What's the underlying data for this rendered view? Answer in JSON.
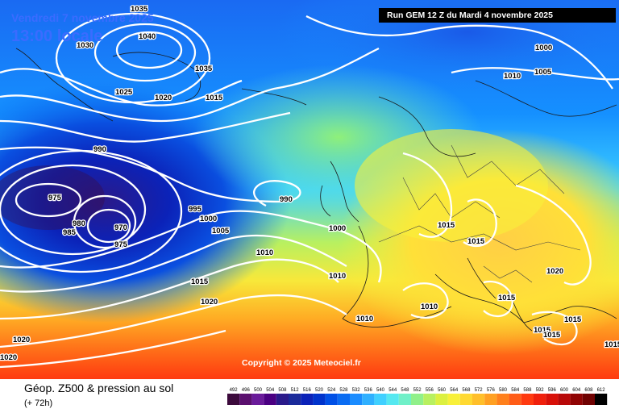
{
  "header": {
    "valid_date": "Vendredi 7 novembre 2025",
    "valid_time": "13:00 locale",
    "run_info": "Run GEM 12 Z du Mardi 4 novembre 2025"
  },
  "copyright": "Copyright © 2025 Meteociel.fr",
  "footer": {
    "title": "Géop. Z500 & pression au sol",
    "lead_time": "(+ 72h)"
  },
  "legend": {
    "values": [
      "492",
      "496",
      "500",
      "504",
      "508",
      "512",
      "516",
      "520",
      "524",
      "528",
      "532",
      "536",
      "540",
      "544",
      "548",
      "552",
      "556",
      "560",
      "564",
      "568",
      "572",
      "576",
      "580",
      "584",
      "588",
      "592",
      "596",
      "600",
      "604",
      "608",
      "612"
    ],
    "colors": [
      "#3b0a3b",
      "#5a0f6e",
      "#6a1b9a",
      "#4b0082",
      "#2a1a8a",
      "#1a2a9a",
      "#0b22b8",
      "#0033cc",
      "#0050e6",
      "#0a6cf2",
      "#1a8cff",
      "#2fb0ff",
      "#40d0ff",
      "#55e8f0",
      "#70f0c8",
      "#90f08a",
      "#b8f060",
      "#dcf040",
      "#f8f03a",
      "#ffd932",
      "#ffbf2a",
      "#ffa022",
      "#ff801c",
      "#ff5c16",
      "#ff3a10",
      "#f0200c",
      "#d81008",
      "#b80808",
      "#900404",
      "#700202",
      "#000000"
    ]
  },
  "pressure_labels": [
    "1035",
    "1040",
    "1030",
    "1035",
    "1025",
    "1020",
    "1015",
    "990",
    "975",
    "980",
    "985",
    "970",
    "975",
    "995",
    "1000",
    "1005",
    "990",
    "1010",
    "1015",
    "1020",
    "1020",
    "1020",
    "1000",
    "1010",
    "1005",
    "1010",
    "1000",
    "1015",
    "1015",
    "1010",
    "1020",
    "1015",
    "1015",
    "1015",
    "1015",
    "1010",
    "1015"
  ]
}
